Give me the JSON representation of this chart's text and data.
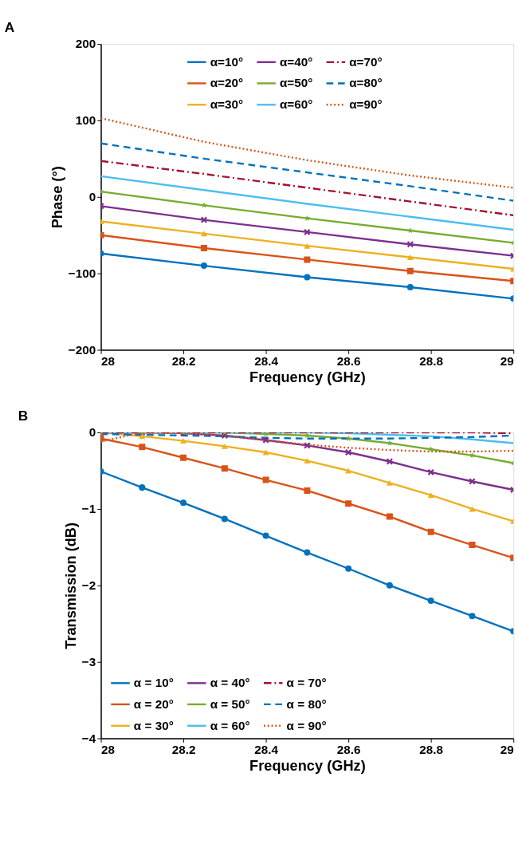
{
  "chart_data": [
    {
      "type": "line",
      "title": "A",
      "xlabel": "Frequency (GHz)",
      "ylabel": "Phase (°)",
      "x": [
        28,
        28.25,
        28.5,
        28.75,
        29
      ],
      "xlim": [
        28,
        29
      ],
      "xticks": [
        28,
        28.2,
        28.4,
        28.6,
        28.8,
        29
      ],
      "ylim": [
        -200,
        200
      ],
      "yticks": [
        -200,
        -100,
        0,
        100,
        200
      ],
      "grid": false,
      "legend": "top",
      "series": [
        {
          "name": "α=10°",
          "color": "#0072bd",
          "marker": "circle",
          "line_style": "solid",
          "values": [
            -74,
            -90,
            -105,
            -118,
            -133
          ]
        },
        {
          "name": "α=20°",
          "color": "#d95319",
          "marker": "square",
          "line_style": "solid",
          "values": [
            -50,
            -67,
            -82,
            -97,
            -110
          ]
        },
        {
          "name": "α=30°",
          "color": "#edb120",
          "marker": "triangle",
          "line_style": "solid",
          "values": [
            -32,
            -48,
            -64,
            -79,
            -94
          ]
        },
        {
          "name": "α=40°",
          "color": "#7e2f8e",
          "marker": "cross",
          "line_style": "solid",
          "values": [
            -12,
            -30,
            -46,
            -62,
            -77
          ]
        },
        {
          "name": "α=50°",
          "color": "#77ac30",
          "marker": "star",
          "line_style": "solid",
          "values": [
            7,
            -11,
            -28,
            -44,
            -60
          ]
        },
        {
          "name": "α=60°",
          "color": "#4dbeee",
          "marker": "none",
          "line_style": "solid",
          "values": [
            27,
            9,
            -9,
            -26,
            -43
          ]
        },
        {
          "name": "α=70°",
          "color": "#a2142f",
          "marker": "none",
          "line_style": "dashdot",
          "values": [
            47,
            30,
            12,
            -6,
            -24
          ]
        },
        {
          "name": "α=80°",
          "color": "#0072bd",
          "marker": "none",
          "line_style": "dashed",
          "values": [
            70,
            50,
            32,
            14,
            -5
          ]
        },
        {
          "name": "α=90°",
          "color": "#d95319",
          "marker": "none",
          "line_style": "dotted",
          "values": [
            103,
            72,
            48,
            28,
            12
          ]
        }
      ]
    },
    {
      "type": "line",
      "title": "B",
      "xlabel": "Frequency (GHz)",
      "ylabel": "Transmission (dB)",
      "x": [
        28,
        28.1,
        28.2,
        28.3,
        28.4,
        28.5,
        28.6,
        28.7,
        28.8,
        28.9,
        29
      ],
      "xlim": [
        28,
        29
      ],
      "xticks": [
        28,
        28.2,
        28.4,
        28.6,
        28.8,
        29
      ],
      "ylim": [
        -4,
        0
      ],
      "yticks": [
        -4,
        -3,
        -2,
        -1,
        0
      ],
      "grid": false,
      "legend": "bottom left",
      "series": [
        {
          "name": "α = 10°",
          "color": "#0072bd",
          "marker": "circle",
          "line_style": "solid",
          "values": [
            -0.51,
            -0.72,
            -0.92,
            -1.13,
            -1.35,
            -1.57,
            -1.78,
            -2.0,
            -2.2,
            -2.4,
            -2.6
          ]
        },
        {
          "name": "α = 20°",
          "color": "#d95319",
          "marker": "square",
          "line_style": "solid",
          "values": [
            -0.08,
            -0.19,
            -0.33,
            -0.47,
            -0.62,
            -0.76,
            -0.93,
            -1.1,
            -1.3,
            -1.47,
            -1.64
          ]
        },
        {
          "name": "α = 30°",
          "color": "#edb120",
          "marker": "triangle",
          "line_style": "solid",
          "values": [
            0,
            -0.05,
            -0.11,
            -0.18,
            -0.26,
            -0.37,
            -0.5,
            -0.66,
            -0.82,
            -1.0,
            -1.16
          ]
        },
        {
          "name": "α = 40°",
          "color": "#7e2f8e",
          "marker": "cross",
          "line_style": "solid",
          "values": [
            0,
            0,
            -0.01,
            -0.04,
            -0.1,
            -0.17,
            -0.26,
            -0.38,
            -0.52,
            -0.64,
            -0.75
          ]
        },
        {
          "name": "α = 50°",
          "color": "#77ac30",
          "marker": "star",
          "line_style": "solid",
          "values": [
            0,
            0,
            0,
            0,
            -0.02,
            -0.04,
            -0.08,
            -0.14,
            -0.22,
            -0.3,
            -0.4
          ]
        },
        {
          "name": "α = 60°",
          "color": "#4dbeee",
          "marker": "none",
          "line_style": "solid",
          "values": [
            0,
            0,
            0,
            0,
            0,
            0,
            -0.01,
            -0.03,
            -0.05,
            -0.09,
            -0.14
          ]
        },
        {
          "name": "α = 70°",
          "color": "#a2142f",
          "marker": "none",
          "line_style": "dashdot",
          "values": [
            0,
            0,
            0,
            0,
            0,
            0,
            0,
            0,
            0,
            0,
            -0.01
          ]
        },
        {
          "name": "α = 80°",
          "color": "#0072bd",
          "marker": "none",
          "line_style": "dashed",
          "values": [
            -0.02,
            -0.03,
            -0.04,
            -0.05,
            -0.07,
            -0.08,
            -0.08,
            -0.08,
            -0.07,
            -0.06,
            -0.04
          ]
        },
        {
          "name": "α = 90°",
          "color": "#d95319",
          "marker": "none",
          "line_style": "dotted",
          "values": [
            -0.12,
            0,
            -0.01,
            -0.04,
            -0.1,
            -0.16,
            -0.2,
            -0.23,
            -0.25,
            -0.25,
            -0.24
          ]
        }
      ]
    }
  ]
}
